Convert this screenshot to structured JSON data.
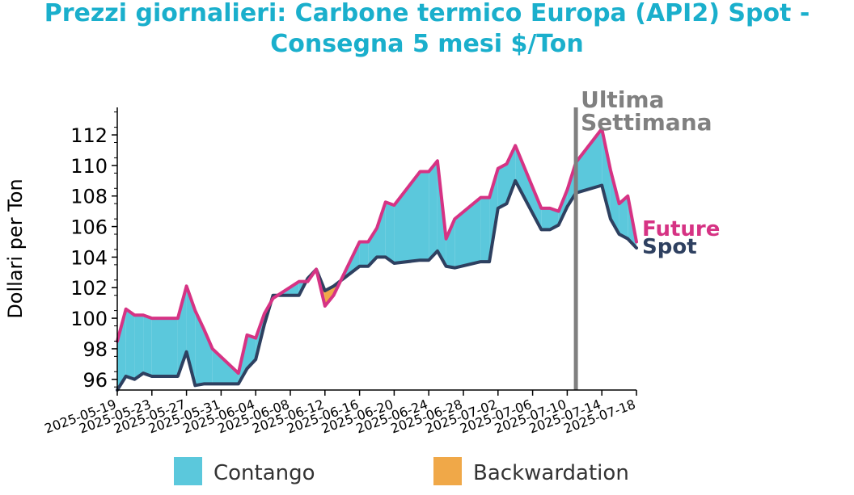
{
  "chart_data": {
    "type": "area",
    "title": "Prezzi giornalieri: Carbone termico Europa (API2) Spot -",
    "title_line2": "Consegna 5 mesi $/Ton",
    "ylabel": "Dollari per Ton",
    "ylim": [
      95.3,
      113.8
    ],
    "y_ticks": [
      96,
      98,
      100,
      102,
      104,
      106,
      108,
      110,
      112
    ],
    "y_tick_labels": [
      "96",
      "98",
      "100",
      "102",
      "104",
      "106",
      "108",
      "110",
      "112"
    ],
    "x_start": "2025-05-19",
    "x_end": "2025-07-18",
    "x_ticks": [
      "2025-05-19",
      "2025-05-23",
      "2025-05-27",
      "2025-05-31",
      "2025-06-04",
      "2025-06-08",
      "2025-06-12",
      "2025-06-16",
      "2025-06-20",
      "2025-06-24",
      "2025-06-28",
      "2025-07-02",
      "2025-07-06",
      "2025-07-10",
      "2025-07-14",
      "2025-07-18"
    ],
    "x": [
      "2025-05-19",
      "2025-05-20",
      "2025-05-21",
      "2025-05-22",
      "2025-05-23",
      "2025-05-26",
      "2025-05-27",
      "2025-05-28",
      "2025-05-29",
      "2025-05-30",
      "2025-06-02",
      "2025-06-03",
      "2025-06-04",
      "2025-06-05",
      "2025-06-06",
      "2025-06-09",
      "2025-06-10",
      "2025-06-11",
      "2025-06-12",
      "2025-06-13",
      "2025-06-16",
      "2025-06-17",
      "2025-06-18",
      "2025-06-19",
      "2025-06-20",
      "2025-06-23",
      "2025-06-24",
      "2025-06-25",
      "2025-06-26",
      "2025-06-27",
      "2025-06-30",
      "2025-07-01",
      "2025-07-02",
      "2025-07-03",
      "2025-07-04",
      "2025-07-07",
      "2025-07-08",
      "2025-07-09",
      "2025-07-10",
      "2025-07-11",
      "2025-07-14",
      "2025-07-15",
      "2025-07-16",
      "2025-07-17",
      "2025-07-18"
    ],
    "series": [
      {
        "name": "Future",
        "color": "#d63384",
        "values": [
          98.5,
          100.6,
          100.2,
          100.2,
          100.0,
          100.0,
          102.1,
          100.5,
          99.3,
          98.0,
          96.4,
          98.9,
          98.7,
          100.3,
          101.3,
          102.4,
          102.4,
          103.2,
          100.8,
          101.5,
          105.0,
          105.0,
          105.9,
          107.6,
          107.4,
          109.6,
          109.6,
          110.3,
          105.2,
          106.5,
          107.9,
          107.9,
          109.8,
          110.1,
          111.3,
          107.2,
          107.2,
          107.0,
          108.4,
          110.2,
          112.4,
          109.7,
          107.5,
          108.0,
          105.0
        ]
      },
      {
        "name": "Spot",
        "color": "#2e4060",
        "values": [
          95.3,
          96.2,
          96.0,
          96.4,
          96.2,
          96.2,
          97.8,
          95.6,
          95.7,
          95.7,
          95.7,
          96.7,
          97.3,
          99.6,
          101.5,
          101.5,
          102.6,
          103.2,
          101.8,
          102.1,
          103.4,
          103.4,
          104.0,
          104.0,
          103.6,
          103.8,
          103.8,
          104.4,
          103.4,
          103.3,
          103.7,
          103.7,
          107.2,
          107.5,
          109.0,
          105.8,
          105.8,
          106.1,
          107.3,
          108.2,
          108.7,
          106.5,
          105.5,
          105.2,
          104.6
        ]
      }
    ],
    "fill_above_color": "#5bc8dc",
    "fill_below_color": "#f0a848",
    "vline_date": "2025-07-11",
    "vline_label": [
      "Ultima",
      "Settimana"
    ],
    "vline_color": "#808080",
    "title_color": "#1aafcc",
    "legend": [
      "Contango",
      "Backwardation"
    ],
    "legend_placement": "bottom",
    "grid": false
  }
}
